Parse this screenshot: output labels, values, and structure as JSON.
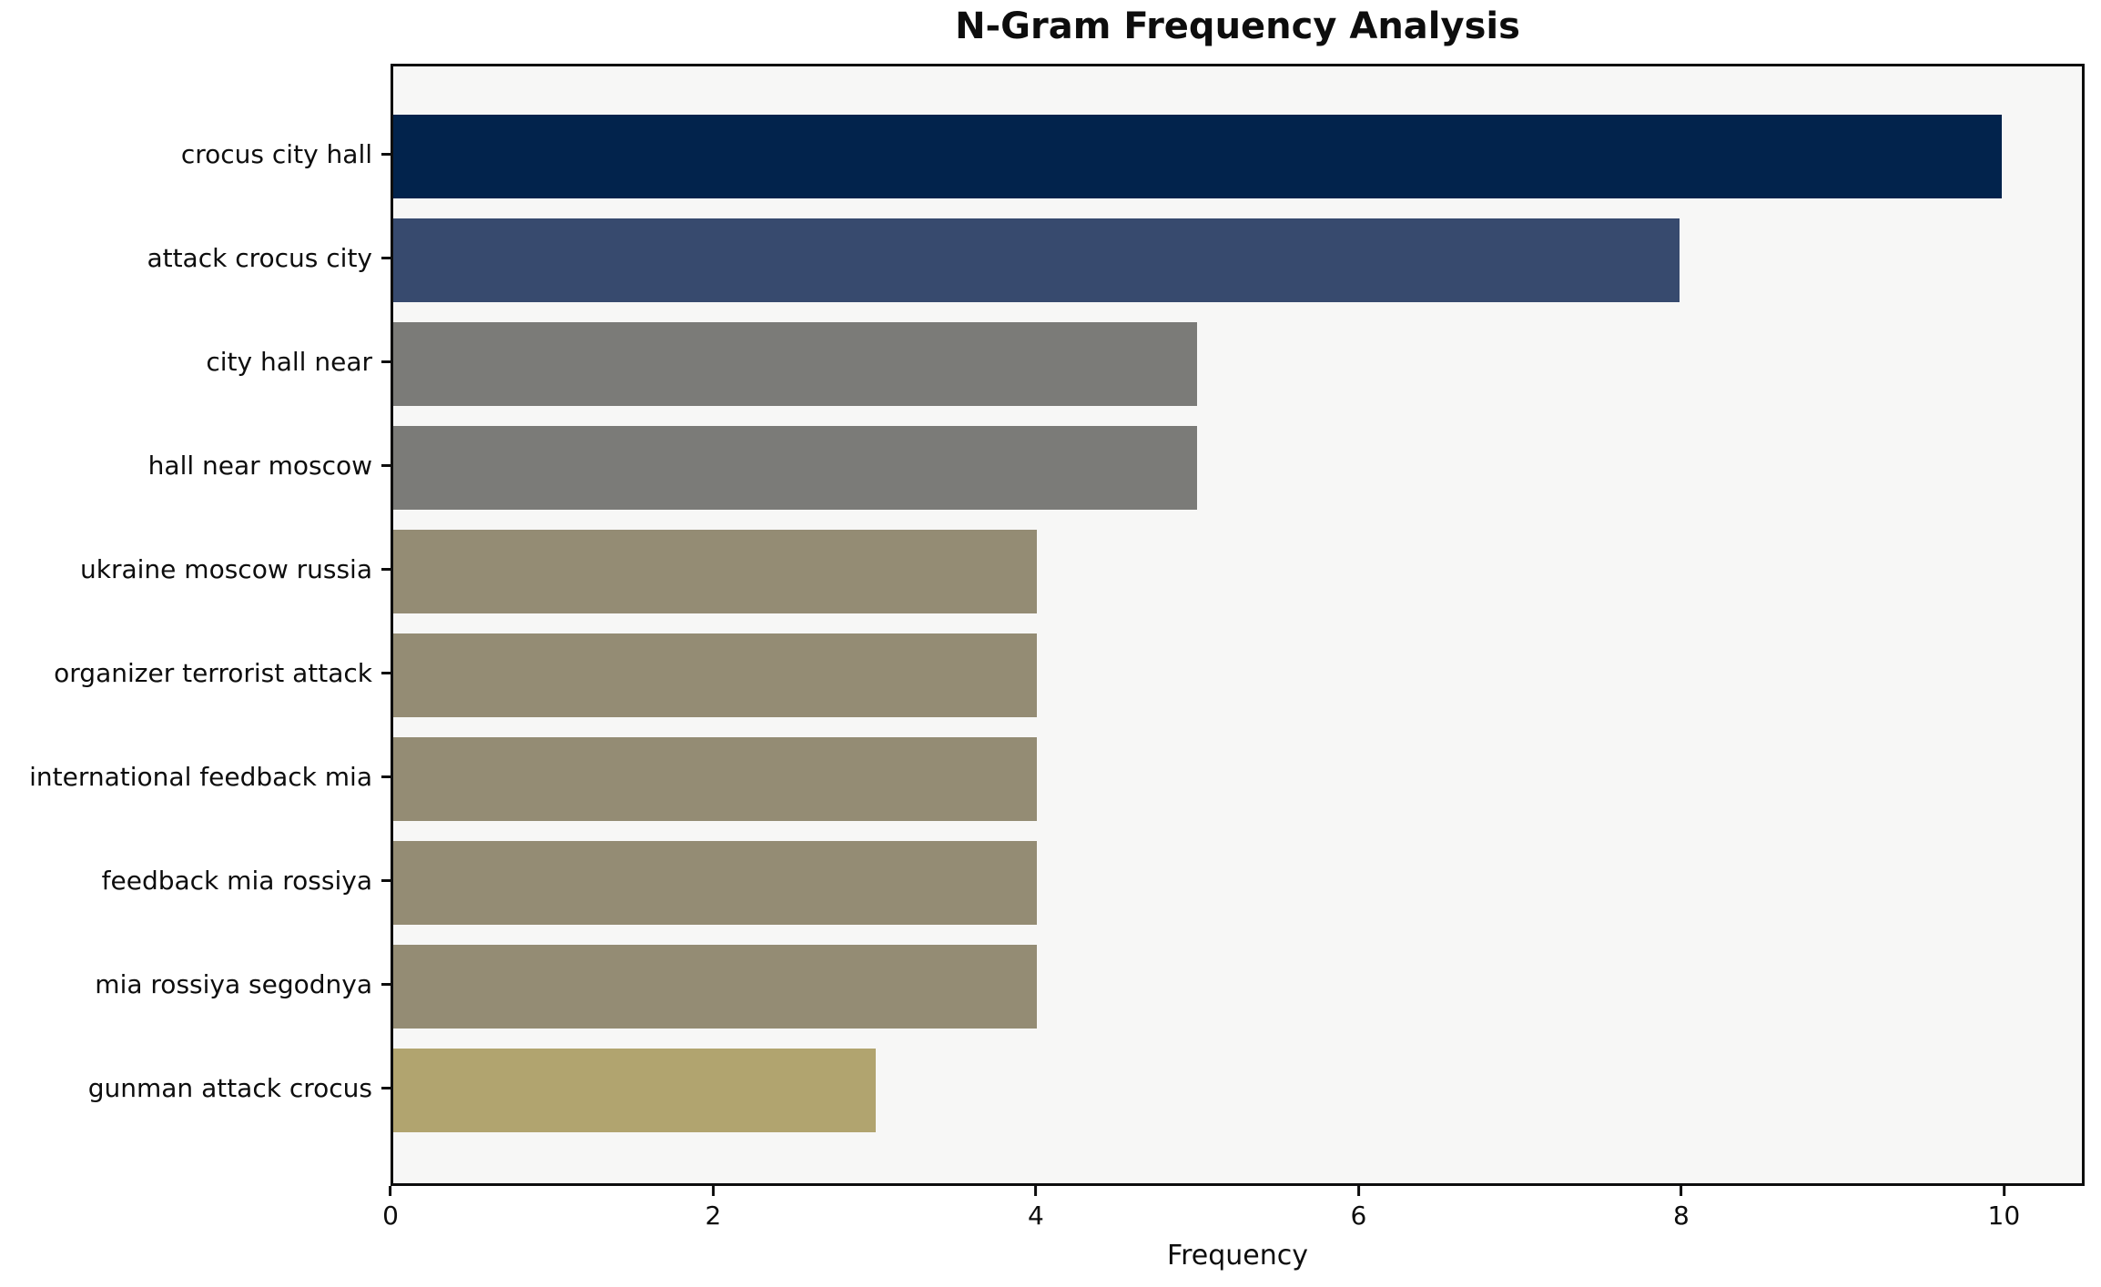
{
  "chart_data": {
    "type": "bar",
    "orientation": "horizontal",
    "title": "N-Gram Frequency Analysis",
    "xlabel": "Frequency",
    "ylabel": "",
    "categories": [
      "crocus city hall",
      "attack crocus city",
      "city hall near",
      "hall near moscow",
      "ukraine moscow russia",
      "organizer terrorist attack",
      "international feedback mia",
      "feedback mia rossiya",
      "mia rossiya segodnya",
      "gunman attack crocus"
    ],
    "values": [
      10,
      8,
      5,
      5,
      4,
      4,
      4,
      4,
      4,
      3
    ],
    "bar_colors": [
      "#02234c",
      "#374a6e",
      "#7b7b78",
      "#7b7b78",
      "#948c74",
      "#948c74",
      "#948c74",
      "#948c74",
      "#948c74",
      "#b1a46f"
    ],
    "xlim": [
      0,
      10.5
    ],
    "xticks": [
      0,
      2,
      4,
      6,
      8,
      10
    ],
    "grid": false,
    "legend": null,
    "plot_background": "#f7f7f6",
    "page_background": "#ffffff",
    "axis_color": "#0d0d0d"
  }
}
